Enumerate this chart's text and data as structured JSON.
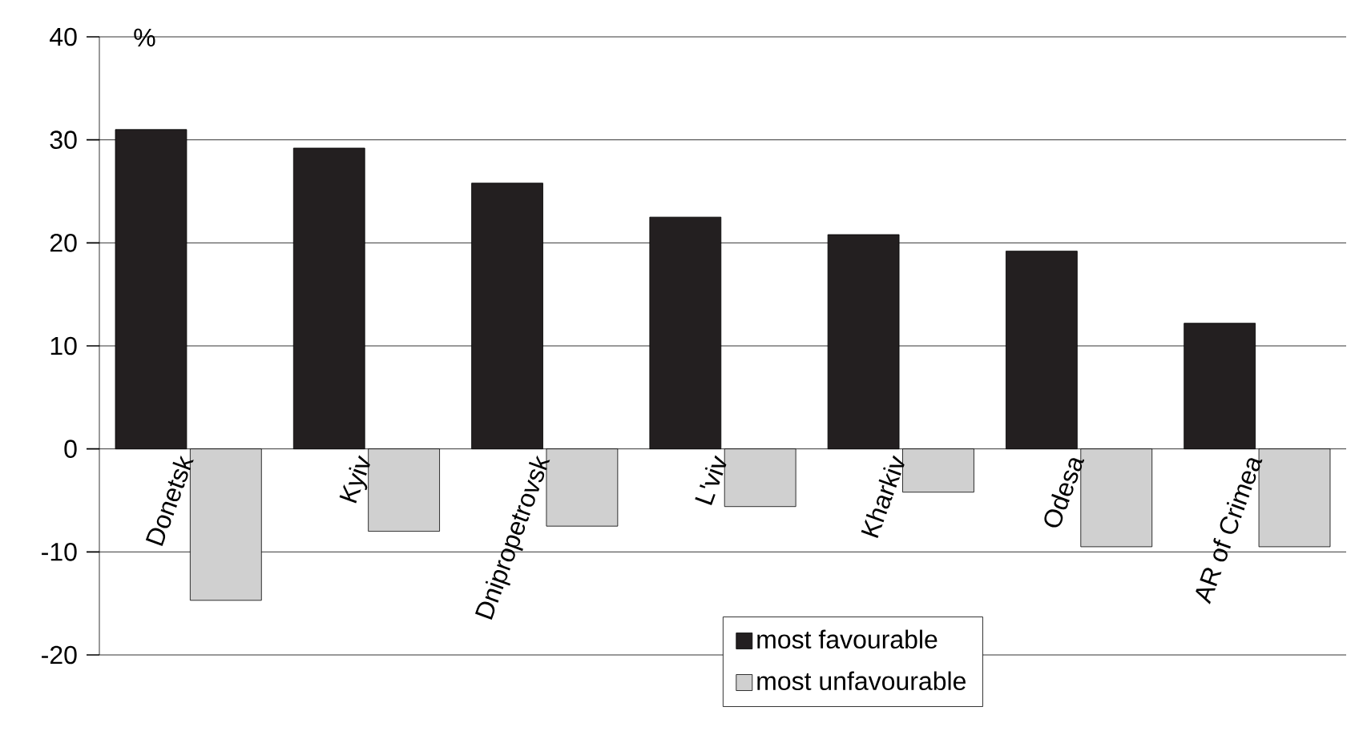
{
  "chart_data": {
    "type": "bar",
    "ylabel": "%",
    "categories": [
      "Donetsk",
      "Kyiv",
      "Dnipropetrovsk",
      "L'viv",
      "Kharkiv",
      "Odesa",
      "AR of Crimea"
    ],
    "series": [
      {
        "name": "most favourable",
        "color": "#231f20",
        "values": [
          31,
          29.2,
          25.8,
          22.5,
          20.8,
          19.2,
          12.2
        ]
      },
      {
        "name": "most unfavourable",
        "color": "#d0d0d0",
        "values": [
          -14.7,
          -8,
          -7.5,
          -5.6,
          -4.2,
          -9.5,
          -9.5
        ]
      }
    ],
    "ylim": [
      -20,
      40
    ],
    "yticks": [
      -20,
      -10,
      0,
      10,
      20,
      30,
      40
    ],
    "grid": "y",
    "legend": "bottom"
  }
}
